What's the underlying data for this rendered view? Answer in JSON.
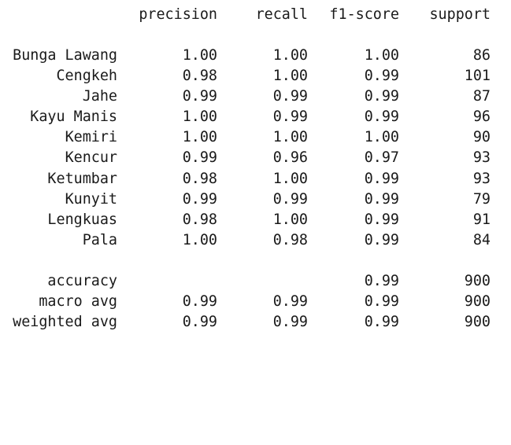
{
  "header": {
    "precision": "precision",
    "recall": "recall",
    "f1": "f1-score",
    "support": "support"
  },
  "classes": [
    {
      "label": "Bunga Lawang",
      "precision": "1.00",
      "recall": "1.00",
      "f1": "1.00",
      "support": "86"
    },
    {
      "label": "Cengkeh",
      "precision": "0.98",
      "recall": "1.00",
      "f1": "0.99",
      "support": "101"
    },
    {
      "label": "Jahe",
      "precision": "0.99",
      "recall": "0.99",
      "f1": "0.99",
      "support": "87"
    },
    {
      "label": "Kayu Manis",
      "precision": "1.00",
      "recall": "0.99",
      "f1": "0.99",
      "support": "96"
    },
    {
      "label": "Kemiri",
      "precision": "1.00",
      "recall": "1.00",
      "f1": "1.00",
      "support": "90"
    },
    {
      "label": "Kencur",
      "precision": "0.99",
      "recall": "0.96",
      "f1": "0.97",
      "support": "93"
    },
    {
      "label": "Ketumbar",
      "precision": "0.98",
      "recall": "1.00",
      "f1": "0.99",
      "support": "93"
    },
    {
      "label": "Kunyit",
      "precision": "0.99",
      "recall": "0.99",
      "f1": "0.99",
      "support": "79"
    },
    {
      "label": "Lengkuas",
      "precision": "0.98",
      "recall": "1.00",
      "f1": "0.99",
      "support": "91"
    },
    {
      "label": "Pala",
      "precision": "1.00",
      "recall": "0.98",
      "f1": "0.99",
      "support": "84"
    }
  ],
  "summary": {
    "accuracy": {
      "label": "accuracy",
      "f1": "0.99",
      "support": "900"
    },
    "macro": {
      "label": "macro avg",
      "precision": "0.99",
      "recall": "0.99",
      "f1": "0.99",
      "support": "900"
    },
    "weighted": {
      "label": "weighted avg",
      "precision": "0.99",
      "recall": "0.99",
      "f1": "0.99",
      "support": "900"
    }
  },
  "colors": {
    "text": "#1a1a1a",
    "background": "#ffffff"
  }
}
